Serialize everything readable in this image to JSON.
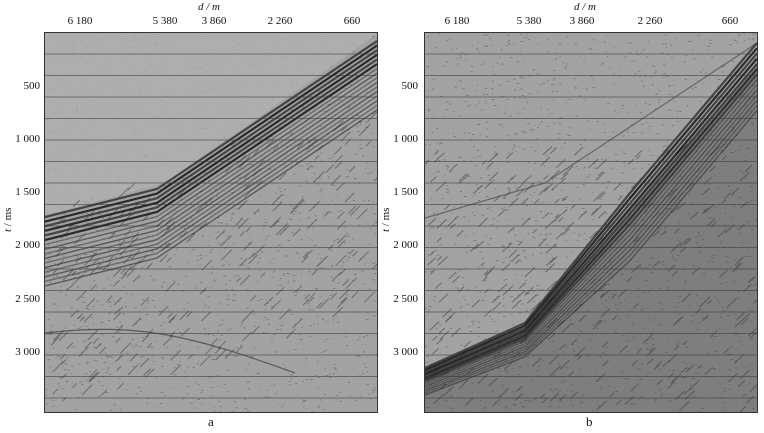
{
  "figure": {
    "panels": [
      {
        "id": "a",
        "caption": "a",
        "x_axis_label": "d / m",
        "x_ticks": [
          "6 180",
          "5 380",
          "3 860",
          "2 260",
          "660"
        ],
        "y_axis_label_var": "t",
        "y_axis_label_unit": " / ms",
        "y_ticks": [
          "500",
          "1 000",
          "1 500",
          "2 000",
          "2 500",
          "3 000"
        ]
      },
      {
        "id": "b",
        "caption": "b",
        "x_axis_label": "d / m",
        "x_ticks": [
          "6 180",
          "5 380",
          "3 860",
          "2 260",
          "660"
        ],
        "y_axis_label_var": "t",
        "y_axis_label_unit": " / ms",
        "y_ticks": [
          "500",
          "1 000",
          "1 500",
          "2 000",
          "2 500",
          "3 000"
        ]
      }
    ]
  }
}
